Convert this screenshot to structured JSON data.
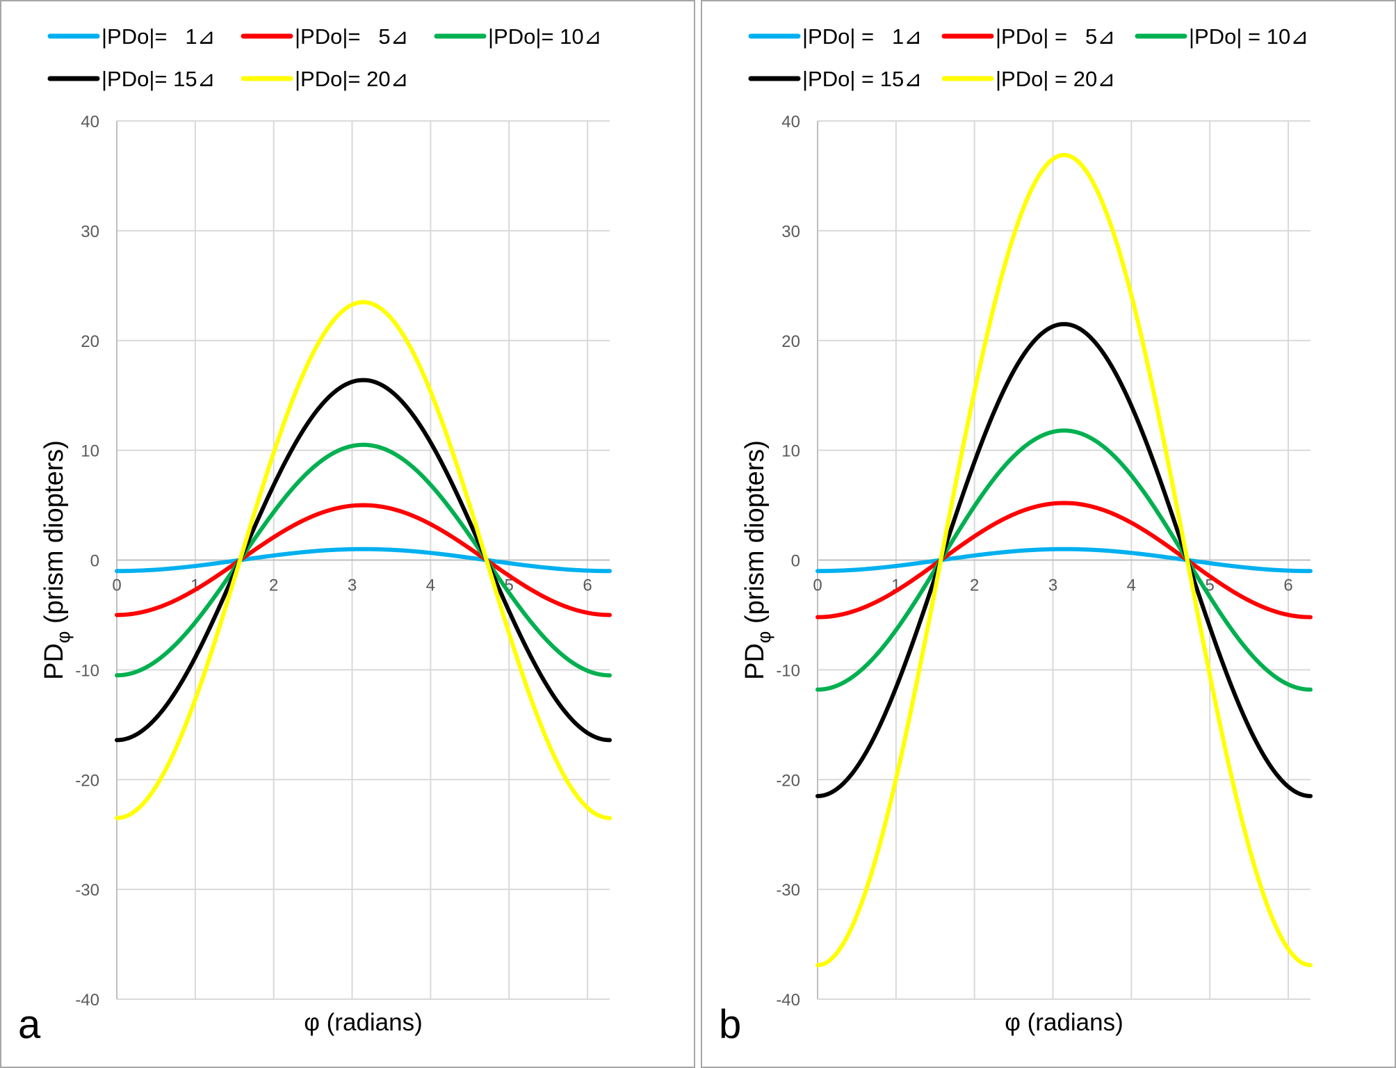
{
  "chart_data": [
    {
      "type": "line",
      "panel_label": "a",
      "xlabel": "φ (radians)",
      "ylabel_main": "PD",
      "ylabel_sub": "φ",
      "ylabel_rest": " (prism diopters)",
      "xlim": [
        0,
        6.2832
      ],
      "ylim": [
        -40,
        40
      ],
      "xticks": [
        0,
        1,
        2,
        3,
        4,
        5,
        6
      ],
      "yticks": [
        -40,
        -30,
        -20,
        -10,
        0,
        10,
        20,
        30,
        40
      ],
      "grid": true,
      "legend_position": "top",
      "curve_form": "y = -amplitude * cos(x)",
      "series": [
        {
          "name": "|PDo|=   1⊿",
          "color": "#00B0F0",
          "amplitude": 1.0
        },
        {
          "name": "|PDo|=   5⊿",
          "color": "#FF0000",
          "amplitude": 5.0
        },
        {
          "name": "|PDo|= 10⊿",
          "color": "#00B050",
          "amplitude": 10.5
        },
        {
          "name": "|PDo|= 15⊿",
          "color": "#000000",
          "amplitude": 16.4
        },
        {
          "name": "|PDo|= 20⊿",
          "color": "#FFFF00",
          "amplitude": 23.5
        }
      ]
    },
    {
      "type": "line",
      "panel_label": "b",
      "xlabel": "φ (radians)",
      "ylabel_main": "PD",
      "ylabel_sub": "φ",
      "ylabel_rest": " (prism diopters)",
      "xlim": [
        0,
        6.2832
      ],
      "ylim": [
        -40,
        40
      ],
      "xticks": [
        0,
        1,
        2,
        3,
        4,
        5,
        6
      ],
      "yticks": [
        -40,
        -30,
        -20,
        -10,
        0,
        10,
        20,
        30,
        40
      ],
      "grid": true,
      "legend_position": "top",
      "curve_form": "y = -amplitude * cos(x)",
      "series": [
        {
          "name": "|PDo| =   1⊿",
          "color": "#00B0F0",
          "amplitude": 1.0
        },
        {
          "name": "|PDo| =   5⊿",
          "color": "#FF0000",
          "amplitude": 5.2
        },
        {
          "name": "|PDo| = 10⊿",
          "color": "#00B050",
          "amplitude": 11.8
        },
        {
          "name": "|PDo| = 15⊿",
          "color": "#000000",
          "amplitude": 21.5
        },
        {
          "name": "|PDo| = 20⊿",
          "color": "#FFFF00",
          "amplitude": 36.9
        }
      ]
    }
  ]
}
